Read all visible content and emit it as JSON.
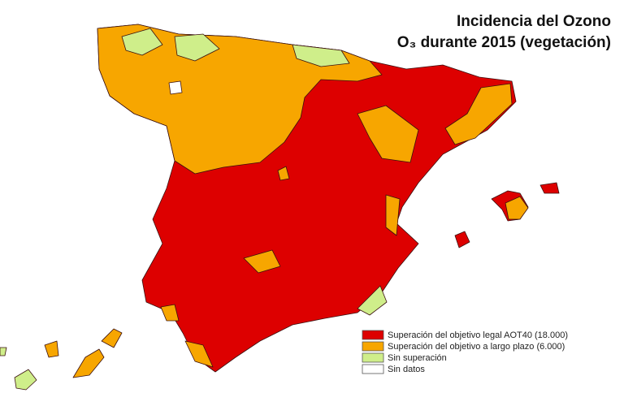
{
  "header": {
    "title": "Incidencia del Ozono",
    "subtitle": "O₃ durante 2015 (vegetación)"
  },
  "legend": [
    {
      "label": "Superación del objetivo legal AOT40 (18.000)",
      "color": "#dd0000"
    },
    {
      "label": "Superación del objetivo a largo plazo (6.000)",
      "color": "#f7a600"
    },
    {
      "label": "Sin superación",
      "color": "#cfee8a"
    },
    {
      "label": "Sin datos",
      "color": "#ffffff"
    }
  ]
}
